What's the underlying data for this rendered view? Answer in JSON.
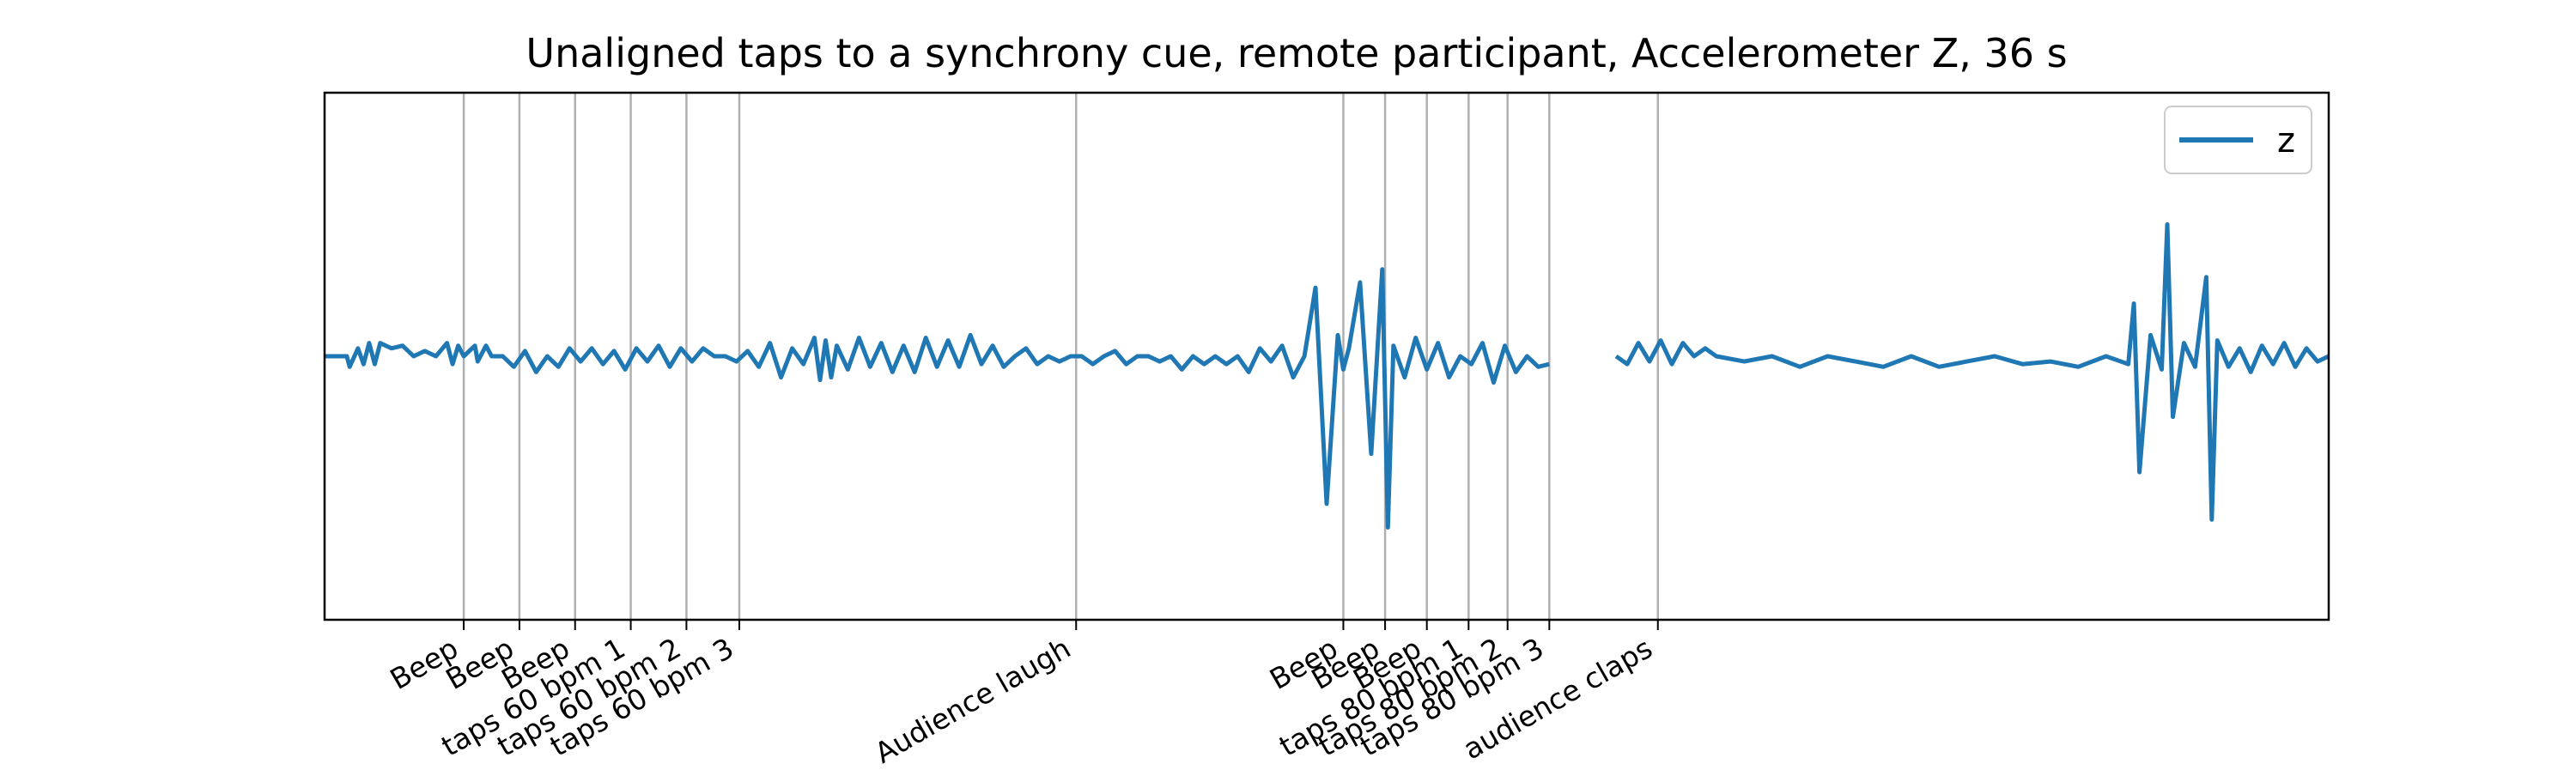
{
  "chart_data": {
    "type": "line",
    "title": "Unaligned taps to a synchrony cue, remote participant, Accelerometer Z, 36 s",
    "xlabel": "",
    "ylabel": "",
    "xlim": [
      0,
      36
    ],
    "ylim": [
      -1.0,
      1.0
    ],
    "y_ticks_visible": false,
    "grid": "vertical lines at event markers only",
    "legend": {
      "placement": "top-right",
      "entries": [
        "z"
      ]
    },
    "series": [
      {
        "name": "z",
        "color": "#1f77b4",
        "segments": [
          {
            "x": [
              0.0,
              0.4,
              0.45,
              0.6,
              0.7,
              0.8,
              0.9,
              1.0,
              1.2,
              1.4,
              1.6,
              1.8,
              2.0,
              2.2,
              2.3,
              2.4,
              2.5,
              2.7,
              2.75,
              2.9,
              3.0,
              3.2,
              3.4,
              3.6,
              3.8,
              4.0,
              4.2,
              4.4,
              4.6,
              4.8,
              5.0,
              5.2,
              5.4,
              5.6,
              5.8,
              6.0,
              6.2,
              6.4,
              6.6,
              6.8,
              7.0,
              7.2,
              7.4,
              7.6,
              7.8,
              8.0,
              8.2,
              8.4,
              8.6,
              8.8,
              8.9,
              9.0,
              9.1,
              9.2,
              9.4,
              9.6,
              9.8,
              10.0,
              10.2,
              10.4,
              10.6,
              10.8,
              11.0,
              11.2,
              11.4,
              11.6,
              11.8,
              12.0,
              12.2,
              12.4,
              12.6,
              12.8,
              13.0,
              13.2,
              13.4,
              13.6,
              13.8,
              14.0,
              14.2,
              14.4,
              14.6,
              14.8,
              15.0,
              15.2,
              15.4,
              15.6,
              15.8,
              16.0,
              16.2,
              16.4,
              16.6,
              16.8,
              17.0,
              17.2,
              17.4,
              17.6,
              17.8,
              18.0,
              18.2,
              18.3,
              18.4,
              18.6,
              18.8,
              19.0,
              19.1,
              19.2,
              19.4,
              19.6,
              19.8,
              20.0,
              20.2,
              20.4,
              20.6,
              20.8,
              21.0,
              21.2,
              21.4,
              21.6,
              21.8,
              22.0
            ],
            "y": [
              0.0,
              0.0,
              -0.04,
              0.03,
              -0.03,
              0.05,
              -0.03,
              0.05,
              0.03,
              0.04,
              0.0,
              0.02,
              0.0,
              0.05,
              -0.03,
              0.04,
              0.0,
              0.04,
              -0.02,
              0.04,
              0.0,
              0.0,
              -0.04,
              0.02,
              -0.06,
              0.0,
              -0.04,
              0.03,
              -0.02,
              0.03,
              -0.03,
              0.02,
              -0.05,
              0.03,
              -0.02,
              0.04,
              -0.04,
              0.03,
              -0.02,
              0.03,
              0.0,
              0.0,
              -0.02,
              0.02,
              -0.04,
              0.05,
              -0.08,
              0.03,
              -0.03,
              0.07,
              -0.09,
              0.06,
              -0.08,
              0.04,
              -0.05,
              0.07,
              -0.04,
              0.05,
              -0.06,
              0.04,
              -0.06,
              0.07,
              -0.04,
              0.06,
              -0.04,
              0.08,
              -0.03,
              0.04,
              -0.04,
              0.0,
              0.03,
              -0.03,
              0.0,
              -0.02,
              0.0,
              0.0,
              -0.03,
              0.0,
              0.02,
              -0.03,
              0.0,
              0.0,
              -0.02,
              0.0,
              -0.05,
              0.0,
              -0.03,
              0.0,
              -0.03,
              0.0,
              -0.06,
              0.03,
              -0.02,
              0.04,
              -0.08,
              0.0,
              0.26,
              -0.56,
              0.08,
              -0.05,
              0.03,
              0.28,
              -0.37,
              0.33,
              -0.65,
              0.04,
              -0.08,
              0.07,
              -0.05,
              0.05,
              -0.08,
              0.0,
              -0.03,
              0.05,
              -0.1,
              0.04,
              -0.06,
              0.0,
              -0.04,
              -0.03
            ]
          },
          {
            "x": [
              23.2,
              23.4,
              23.6,
              23.8,
              24.0,
              24.2,
              24.4,
              24.6,
              24.8,
              25.0,
              25.5,
              26.0,
              26.5,
              27.0,
              27.5,
              28.0,
              28.5,
              29.0,
              29.5,
              30.0,
              30.5,
              31.0,
              31.5,
              32.0,
              32.4,
              32.5,
              32.6,
              32.8,
              33.0,
              33.1,
              33.2,
              33.4,
              33.6,
              33.8,
              33.9,
              34.0,
              34.2,
              34.4,
              34.6,
              34.8,
              35.0,
              35.2,
              35.4,
              35.6,
              35.8,
              36.0
            ],
            "y": [
              0.0,
              -0.03,
              0.05,
              -0.02,
              0.06,
              -0.03,
              0.05,
              0.0,
              0.03,
              0.0,
              -0.02,
              0.0,
              -0.04,
              0.0,
              -0.02,
              -0.04,
              0.0,
              -0.04,
              -0.02,
              0.0,
              -0.03,
              -0.02,
              -0.04,
              0.0,
              -0.03,
              0.2,
              -0.44,
              0.08,
              -0.05,
              0.5,
              -0.23,
              0.05,
              -0.04,
              0.3,
              -0.62,
              0.06,
              -0.04,
              0.03,
              -0.06,
              0.04,
              -0.03,
              0.05,
              -0.04,
              0.03,
              -0.02,
              0.0
            ]
          }
        ]
      }
    ],
    "events": [
      {
        "x": 2.5,
        "label": "Beep"
      },
      {
        "x": 3.5,
        "label": "Beep"
      },
      {
        "x": 4.5,
        "label": "Beep"
      },
      {
        "x": 5.5,
        "label": "taps 60 bpm 1"
      },
      {
        "x": 6.5,
        "label": "taps 60 bpm 2"
      },
      {
        "x": 7.45,
        "label": "taps 60 bpm 3"
      },
      {
        "x": 13.5,
        "label": "Audience laugh"
      },
      {
        "x": 18.3,
        "label": "Beep"
      },
      {
        "x": 19.05,
        "label": "Beep"
      },
      {
        "x": 19.8,
        "label": "Beep"
      },
      {
        "x": 20.55,
        "label": "taps 80 bpm 1"
      },
      {
        "x": 21.25,
        "label": "taps 80 bpm 2"
      },
      {
        "x": 22.0,
        "label": "taps 80 bpm 3"
      },
      {
        "x": 23.95,
        "label": "audience claps"
      }
    ]
  }
}
